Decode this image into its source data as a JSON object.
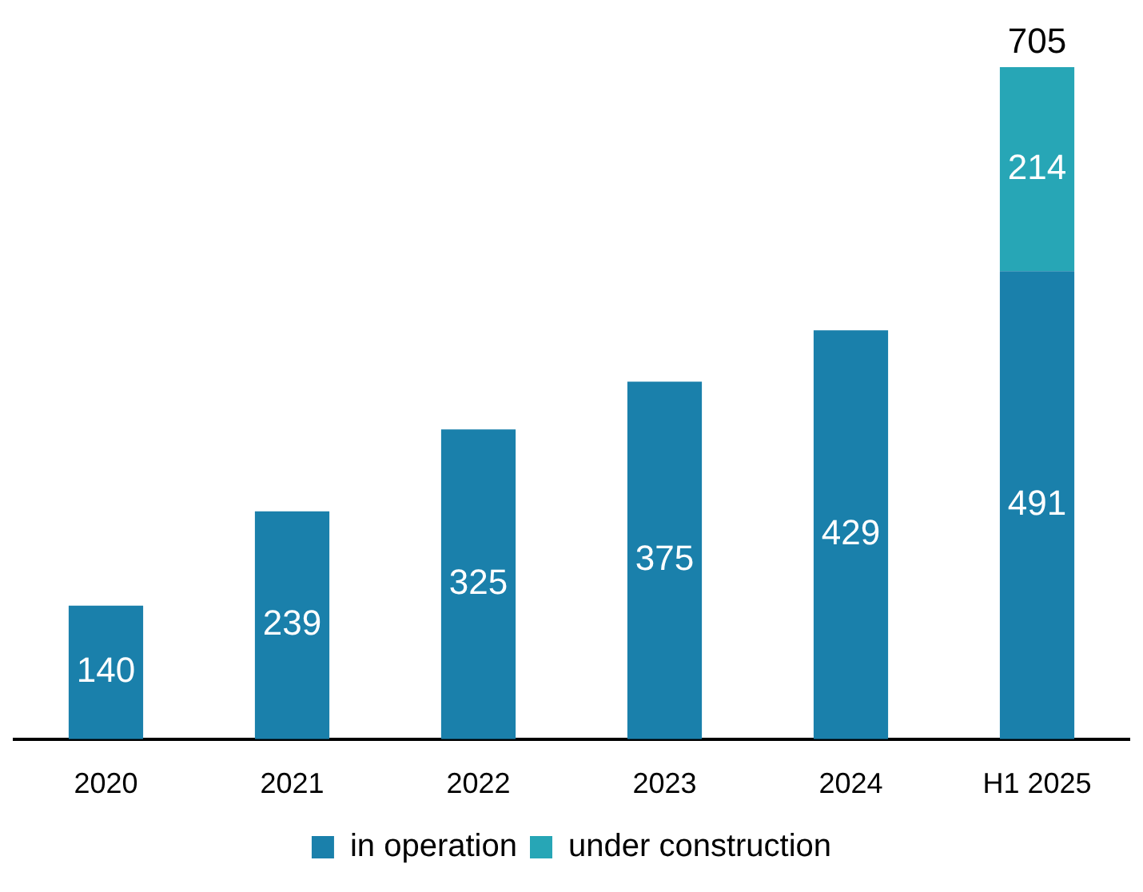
{
  "chart_data": {
    "type": "bar",
    "stacked": true,
    "categories": [
      "2020",
      "2021",
      "2022",
      "2023",
      "2024",
      "H1 2025"
    ],
    "series": [
      {
        "name": "in operation",
        "color": "#1a80ab",
        "values": [
          140,
          239,
          325,
          375,
          429,
          491
        ]
      },
      {
        "name": "under construction",
        "color": "#27a6b6",
        "values": [
          null,
          null,
          null,
          null,
          null,
          214
        ]
      }
    ],
    "data_labels": true,
    "totals": [
      null,
      null,
      null,
      null,
      null,
      "705"
    ],
    "legend": "bottom",
    "grid": false
  }
}
